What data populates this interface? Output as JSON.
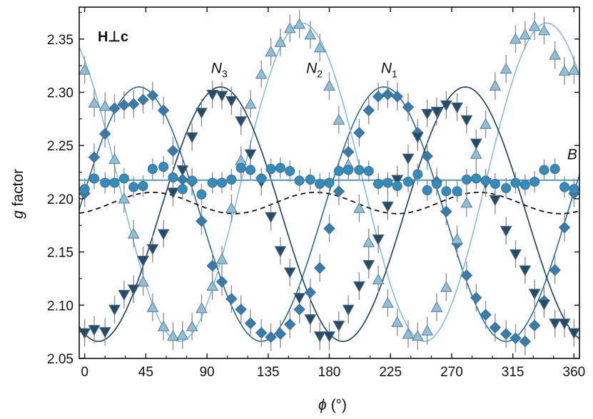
{
  "chart_data": {
    "type": "scatter",
    "xlabel_symbol": "ϕ",
    "xlabel_unit": "(°)",
    "ylabel_symbol": "g",
    "ylabel_text": "factor",
    "panel_label": "H⊥c",
    "xlim": [
      -4,
      364
    ],
    "ylim": [
      2.05,
      2.38
    ],
    "xticks": [
      0,
      45,
      90,
      135,
      180,
      225,
      270,
      315,
      360
    ],
    "yticks": [
      2.05,
      2.1,
      2.15,
      2.2,
      2.25,
      2.3,
      2.35
    ],
    "grid": false,
    "labels": [
      {
        "main": "N",
        "sub": "3",
        "x": 93,
        "y": 2.318
      },
      {
        "main": "N",
        "sub": "2",
        "x": 163,
        "y": 2.318
      },
      {
        "main": "N",
        "sub": "1",
        "x": 218,
        "y": 2.318
      },
      {
        "main": "B",
        "sub": "",
        "x": 355,
        "y": 2.237
      }
    ],
    "fits": [
      {
        "series": "N1",
        "color": "#1f6f9a",
        "dashed": false,
        "center": 2.1855,
        "amp": 0.1195,
        "period": 180,
        "phase": 40
      },
      {
        "series": "N2",
        "color": "#7fbfdc",
        "dashed": false,
        "center": 2.2155,
        "amp": 0.1495,
        "period": 180,
        "phase": 160
      },
      {
        "series": "N3",
        "color": "#14405f",
        "dashed": false,
        "center": 2.1855,
        "amp": 0.1195,
        "period": 180,
        "phase": 100
      },
      {
        "series": "B",
        "color": "#2a8fc4",
        "dashed": false,
        "center": 2.2175,
        "amp": 0,
        "period": 180,
        "phase": 0
      },
      {
        "series": "average",
        "color": "#111111",
        "dashed": true,
        "center": 2.196,
        "amp": 0.01,
        "period": 120,
        "phase": 170
      }
    ],
    "series": [
      {
        "name": "N1",
        "marker": "diamond",
        "fill": "#2c7fb8",
        "stroke": "#5a6a78",
        "x": [
          0,
          7,
          15,
          22,
          29,
          36,
          43,
          50,
          58,
          65,
          72,
          79,
          86,
          94,
          101,
          108,
          115,
          122,
          130,
          137,
          144,
          151,
          158,
          166,
          173,
          180,
          187,
          194,
          202,
          209,
          216,
          223,
          230,
          238,
          245,
          252,
          259,
          266,
          274,
          281,
          288,
          295,
          302,
          310,
          317,
          324,
          331,
          338,
          346,
          353,
          360
        ],
        "y": [
          2.205,
          2.239,
          2.261,
          2.285,
          2.288,
          2.289,
          2.293,
          2.297,
          2.283,
          2.245,
          2.218,
          2.216,
          2.179,
          2.137,
          2.122,
          2.106,
          2.096,
          2.083,
          2.074,
          2.07,
          2.073,
          2.082,
          2.096,
          2.112,
          2.135,
          2.172,
          2.207,
          2.244,
          2.262,
          2.283,
          2.296,
          2.298,
          2.296,
          2.286,
          2.262,
          2.24,
          2.216,
          2.188,
          2.158,
          2.128,
          2.107,
          2.091,
          2.079,
          2.073,
          2.069,
          2.066,
          2.081,
          2.104,
          2.133,
          2.173,
          2.205
        ],
        "err": 0.013
      },
      {
        "name": "N2",
        "marker": "triangle-up",
        "fill": "#86c3e0",
        "stroke": "#6f7f8c",
        "x": [
          0,
          7,
          15,
          22,
          29,
          36,
          43,
          50,
          58,
          65,
          72,
          79,
          86,
          94,
          101,
          108,
          115,
          122,
          130,
          137,
          144,
          151,
          158,
          166,
          173,
          180,
          187,
          194,
          202,
          209,
          216,
          223,
          230,
          238,
          245,
          252,
          259,
          266,
          274,
          281,
          288,
          295,
          302,
          310,
          317,
          324,
          331,
          338,
          346,
          353,
          360
        ],
        "y": [
          2.321,
          2.29,
          2.287,
          2.237,
          2.2,
          2.167,
          2.122,
          2.098,
          2.08,
          2.071,
          2.072,
          2.08,
          2.097,
          2.118,
          2.143,
          2.191,
          2.236,
          2.289,
          2.317,
          2.338,
          2.347,
          2.36,
          2.364,
          2.354,
          2.342,
          2.306,
          2.274,
          2.232,
          2.191,
          2.159,
          2.124,
          2.102,
          2.084,
          2.073,
          2.071,
          2.076,
          2.098,
          2.117,
          2.162,
          2.196,
          2.242,
          2.27,
          2.306,
          2.322,
          2.35,
          2.354,
          2.362,
          2.358,
          2.335,
          2.32,
          2.321
        ],
        "err": 0.013
      },
      {
        "name": "N3",
        "marker": "triangle-down",
        "fill": "#1d4e70",
        "stroke": "#4f5f6c",
        "x": [
          0,
          7,
          15,
          22,
          29,
          36,
          43,
          50,
          58,
          65,
          72,
          79,
          86,
          94,
          101,
          108,
          115,
          122,
          130,
          137,
          144,
          151,
          158,
          166,
          173,
          180,
          187,
          194,
          202,
          209,
          216,
          223,
          230,
          238,
          245,
          252,
          259,
          266,
          274,
          281,
          288,
          295,
          302,
          310,
          317,
          324,
          331,
          338,
          346,
          353,
          360
        ],
        "y": [
          2.074,
          2.077,
          2.075,
          2.096,
          2.11,
          2.115,
          2.142,
          2.153,
          2.167,
          2.206,
          2.227,
          2.258,
          2.281,
          2.298,
          2.297,
          2.292,
          2.273,
          2.242,
          2.216,
          2.183,
          2.151,
          2.131,
          2.107,
          2.087,
          2.071,
          2.071,
          2.081,
          2.096,
          2.118,
          2.138,
          2.162,
          2.193,
          2.218,
          2.238,
          2.258,
          2.28,
          2.282,
          2.288,
          2.286,
          2.274,
          2.252,
          2.215,
          2.199,
          2.17,
          2.148,
          2.133,
          2.111,
          2.101,
          2.083,
          2.083,
          2.074
        ],
        "err": 0.013
      },
      {
        "name": "B",
        "marker": "circle",
        "fill": "#2a8fc4",
        "stroke": "#5a6a78",
        "x": [
          0,
          7,
          15,
          22,
          29,
          36,
          43,
          50,
          58,
          65,
          72,
          79,
          86,
          94,
          101,
          108,
          115,
          122,
          130,
          137,
          144,
          151,
          158,
          166,
          173,
          180,
          187,
          194,
          202,
          209,
          216,
          223,
          230,
          238,
          245,
          252,
          259,
          266,
          274,
          281,
          288,
          295,
          302,
          310,
          317,
          324,
          331,
          338,
          346,
          353,
          360
        ],
        "y": [
          2.209,
          2.219,
          2.215,
          2.215,
          2.219,
          2.211,
          2.212,
          2.228,
          2.23,
          2.22,
          2.209,
          2.217,
          2.204,
          2.215,
          2.215,
          2.218,
          2.229,
          2.227,
          2.219,
          2.228,
          2.229,
          2.226,
          2.217,
          2.218,
          2.214,
          2.215,
          2.226,
          2.227,
          2.227,
          2.226,
          2.214,
          2.215,
          2.212,
          2.216,
          2.223,
          2.208,
          2.214,
          2.207,
          2.207,
          2.218,
          2.219,
          2.217,
          2.214,
          2.21,
          2.215,
          2.213,
          2.216,
          2.227,
          2.228,
          2.211,
          2.209
        ],
        "err": 0.01
      }
    ]
  }
}
